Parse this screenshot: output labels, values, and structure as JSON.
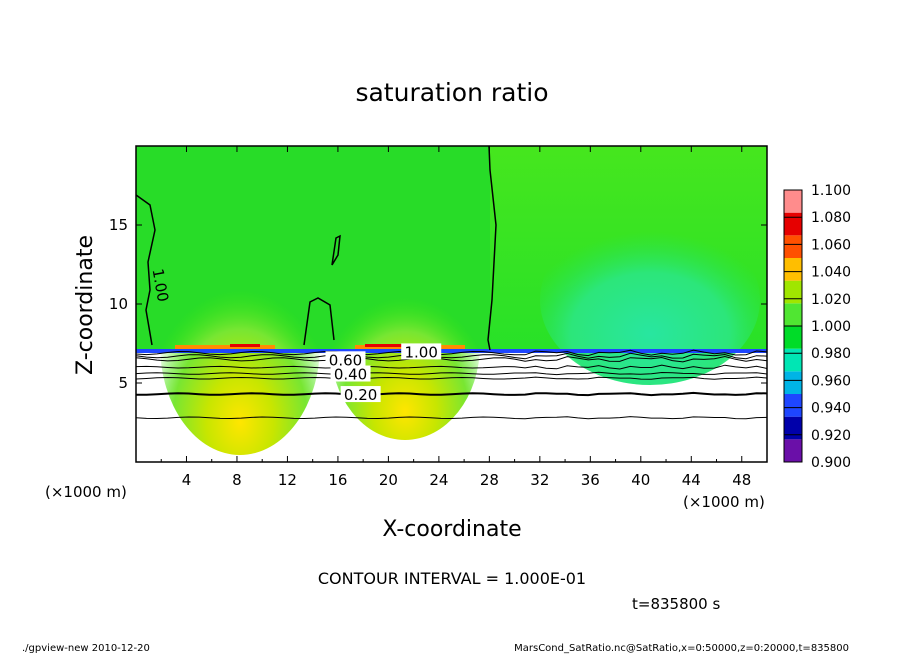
{
  "chart_data": {
    "type": "contour",
    "title": "saturation ratio",
    "xlabel": "X-coordinate",
    "ylabel": "Z-coordinate",
    "x_unit": "(×1000 m)",
    "y_unit": "(×1000 m)",
    "xlim": [
      0,
      50
    ],
    "ylim": [
      0,
      20
    ],
    "xticks": [
      4,
      8,
      12,
      16,
      20,
      24,
      28,
      32,
      36,
      40,
      44,
      48
    ],
    "yticks": [
      5,
      10,
      15
    ],
    "contour_interval_text": "CONTOUR INTERVAL = 1.000E-01",
    "time_text": "t=835800 s",
    "colorbar": {
      "levels": [
        "0.900",
        "0.920",
        "0.940",
        "0.960",
        "0.980",
        "1.000",
        "1.020",
        "1.040",
        "1.060",
        "1.080",
        "1.100"
      ],
      "colors": [
        "#6a0fa8",
        "#0000aa",
        "#1e46ff",
        "#00b4e6",
        "#00e6b4",
        "#00dc28",
        "#50e632",
        "#a0e600",
        "#ffbe00",
        "#ff5000",
        "#e60000",
        "#ff8c8c"
      ]
    },
    "contour_labels": [
      {
        "text": "1.00",
        "x": 2.0,
        "y": 11.2
      },
      {
        "text": "1.00",
        "x": 22.6,
        "y": 7.0
      },
      {
        "text": "0.60",
        "x": 16.6,
        "y": 6.5
      },
      {
        "text": "0.40",
        "x": 17.0,
        "y": 5.6
      },
      {
        "text": "0.20",
        "x": 17.8,
        "y": 4.3
      }
    ],
    "contour_levels_z": [
      2.8,
      4.3,
      5.3,
      5.6,
      6.0,
      6.5,
      6.7,
      6.9
    ]
  },
  "footer": {
    "left": "./gpview-new  2010-12-20",
    "right": "MarsCond_SatRatio.nc@SatRatio,x=0:50000,z=0:20000,t=835800"
  }
}
